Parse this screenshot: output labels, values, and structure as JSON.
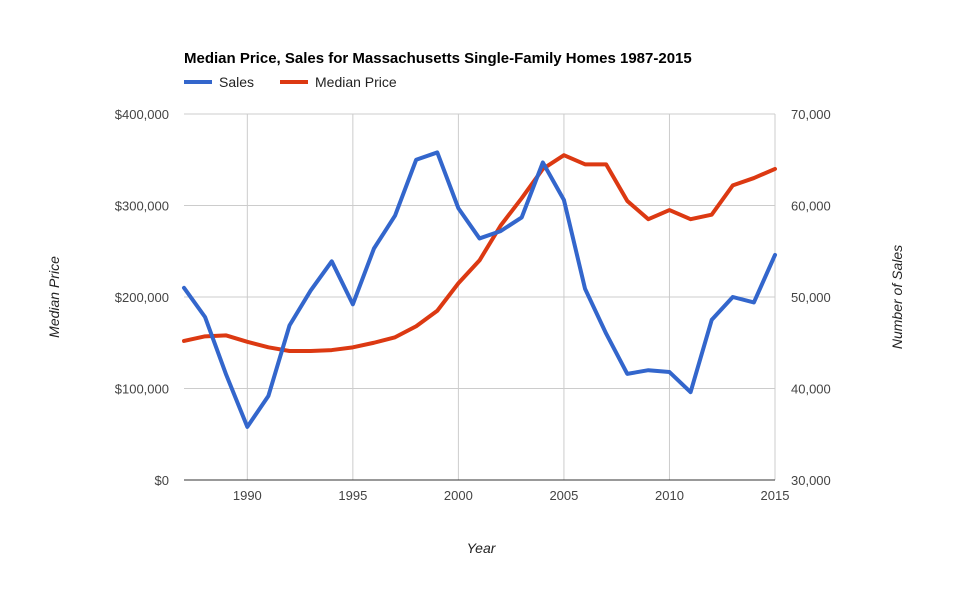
{
  "chart_data": {
    "type": "line",
    "title": "Median Price, Sales for Massachusetts Single-Family Homes 1987-2015",
    "xlabel": "Year",
    "ylabel_left": "Median Price",
    "ylabel_right": "Number of Sales",
    "xlim": [
      1987,
      2015
    ],
    "x_ticks": [
      1990,
      1995,
      2000,
      2005,
      2010,
      2015
    ],
    "y_left_lim": [
      0,
      400000
    ],
    "y_left_ticks": [
      "$0",
      "$100,000",
      "$200,000",
      "$300,000",
      "$400,000"
    ],
    "y_right_lim": [
      30000,
      70000
    ],
    "y_right_ticks": [
      "30,000",
      "40,000",
      "50,000",
      "60,000",
      "70,000"
    ],
    "legend_position": "top-left",
    "grid": true,
    "x": [
      1987,
      1988,
      1989,
      1990,
      1991,
      1992,
      1993,
      1994,
      1995,
      1996,
      1997,
      1998,
      1999,
      2000,
      2001,
      2002,
      2003,
      2004,
      2005,
      2006,
      2007,
      2008,
      2009,
      2010,
      2011,
      2012,
      2013,
      2014,
      2015
    ],
    "series": [
      {
        "name": "Sales",
        "axis": "right",
        "color": "#3366cc",
        "values": [
          51000,
          47800,
          41500,
          35800,
          39200,
          46900,
          50700,
          53900,
          49200,
          55300,
          58900,
          65000,
          65800,
          59700,
          56400,
          57200,
          58700,
          64700,
          60600,
          50900,
          46000,
          41600,
          42000,
          41800,
          39600,
          47500,
          50000,
          49400,
          54600
        ]
      },
      {
        "name": "Median Price",
        "axis": "left",
        "color": "#dc3912",
        "values": [
          152000,
          157000,
          158000,
          151000,
          145000,
          141000,
          141000,
          142000,
          145000,
          150000,
          156000,
          168000,
          185000,
          215000,
          240000,
          278000,
          308000,
          340000,
          355000,
          345000,
          345000,
          305000,
          285000,
          295000,
          285000,
          290000,
          322000,
          330000,
          340000
        ]
      }
    ]
  }
}
